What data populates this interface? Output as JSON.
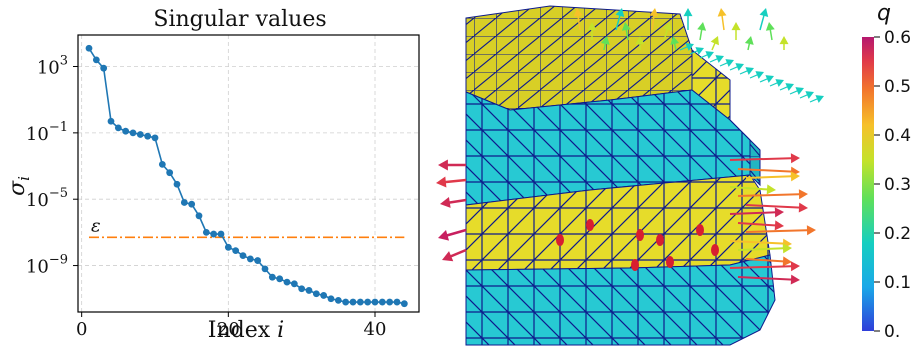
{
  "chart_data": [
    {
      "type": "scatter",
      "title": "Singular values",
      "xlabel": "Index i",
      "xlabel_text": "Index ",
      "xlabel_var": "i",
      "ylabel_var": "σ",
      "ylabel_sub": "i",
      "xlim": [
        -0.5,
        46
      ],
      "ylim_log10": [
        -11.8,
        4.9
      ],
      "yscale": "log",
      "grid": true,
      "x_ticks": [
        0,
        20,
        40
      ],
      "y_ticks": [
        {
          "base": "10",
          "exp": "3",
          "log10": 3
        },
        {
          "base": "10",
          "exp": "−1",
          "log10": -1
        },
        {
          "base": "10",
          "exp": "−5",
          "log10": -5
        },
        {
          "base": "10",
          "exp": "−9",
          "log10": -9
        }
      ],
      "series": [
        {
          "color": "#1f77b4",
          "x": [
            1,
            2,
            3,
            4,
            5,
            6,
            7,
            8,
            9,
            10,
            11,
            12,
            13,
            14,
            15,
            16,
            17,
            18,
            19,
            20,
            21,
            22,
            23,
            24,
            25,
            26,
            27,
            28,
            29,
            30,
            31,
            32,
            33,
            34,
            35,
            36,
            37,
            38,
            39,
            40,
            41,
            42,
            43,
            44
          ],
          "log10_y": [
            4.1,
            3.4,
            2.9,
            -0.3,
            -0.7,
            -0.9,
            -1.0,
            -1.1,
            -1.2,
            -1.3,
            -2.9,
            -3.4,
            -4.1,
            -5.2,
            -5.3,
            -6.0,
            -7.0,
            -7.1,
            -7.1,
            -7.9,
            -8.1,
            -8.4,
            -8.6,
            -8.7,
            -9.2,
            -9.7,
            -9.8,
            -10.0,
            -10.1,
            -10.4,
            -10.5,
            -10.7,
            -10.8,
            -11.0,
            -11.1,
            -11.2,
            -11.2,
            -11.2,
            -11.2,
            -11.2,
            -11.2,
            -11.2,
            -11.2,
            -11.3
          ]
        }
      ],
      "threshold": {
        "label": "ε",
        "log10_y": -7.3,
        "color": "#ff7f0e",
        "style": "dash-dot",
        "x_from": 1,
        "x_to": 44
      }
    }
  ],
  "colorbar": {
    "title": "q",
    "tick_labels": [
      "0.6",
      "0.5",
      "0.4",
      "0.3",
      "0.2",
      "0.1",
      "0."
    ],
    "tick_values": [
      0.6,
      0.5,
      0.4,
      0.3,
      0.2,
      0.1,
      0.0
    ],
    "range": [
      0.0,
      0.6
    ],
    "colormap": "turbo"
  },
  "render": {
    "mesh_colors": {
      "yellow": "#e6dc2a",
      "cyan": "#27c9d3",
      "edge": "#0d1a8c"
    }
  }
}
